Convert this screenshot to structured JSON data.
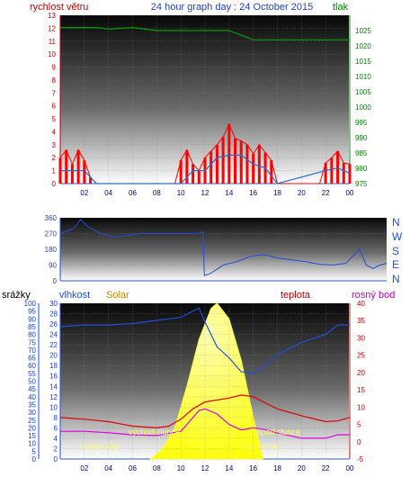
{
  "header": {
    "left_title": "rychlost větru",
    "center_title": "24 hour graph day : 24 October 2015",
    "right_title": "tlak"
  },
  "bottom_headers": {
    "rain": "srážky",
    "humidity": "vlhkost",
    "solar": "Solar",
    "temp": "teplota",
    "dew": "rosný bod"
  },
  "colors": {
    "wind": "#ff0000",
    "wind_avg": "#1e6fd0",
    "pressure": "#00a000",
    "direction": "#1f4fd8",
    "humidity": "#1f4fd8",
    "temperature": "#e00000",
    "dewpoint": "#e000e0",
    "solar": "#ffff30",
    "title_blue": "#2040c0",
    "label_red": "#c00000",
    "axis_green": "#008000",
    "solar_label": "#d08000"
  },
  "chart_data": [
    {
      "type": "bar",
      "title": "24 hour graph day : 24 October 2015",
      "ylabel": "rychlost větru",
      "y2label": "tlak",
      "ylim": [
        0,
        13
      ],
      "y2lim": [
        975,
        1030
      ],
      "x_ticks": [
        "02",
        "04",
        "06",
        "08",
        "10",
        "12",
        "14",
        "16",
        "18",
        "20",
        "22",
        "00"
      ],
      "y_ticks": [
        "0",
        "1",
        "2",
        "3",
        "4",
        "5",
        "6",
        "7",
        "8",
        "9",
        "10",
        "11",
        "12",
        "13"
      ],
      "y2_ticks": [
        "975",
        "980",
        "985",
        "990",
        "995",
        "1000",
        "1005",
        "1010",
        "1015",
        "1020",
        "1025"
      ],
      "series": [
        {
          "x": [
            0,
            0.5,
            1,
            1.5,
            2,
            2.5,
            3,
            9.5,
            10,
            10.5,
            11,
            11.5,
            12,
            12.5,
            13,
            13.5,
            14,
            14.5,
            15,
            15.5,
            16,
            16.5,
            17,
            17.5,
            18,
            21.5,
            22,
            22.5,
            23,
            23.5,
            24
          ],
          "values": [
            2,
            2.6,
            1.5,
            2.6,
            1.8,
            0.5,
            0,
            0,
            1.8,
            2.6,
            1.5,
            1,
            2,
            2.5,
            3,
            3.6,
            4.6,
            3.5,
            3.3,
            3,
            2.3,
            3,
            2.4,
            1.8,
            0,
            0,
            1.6,
            2,
            2.5,
            1.6,
            1.5
          ]
        },
        {
          "x": [
            0,
            1,
            2,
            3,
            10,
            11,
            12,
            13,
            14,
            15,
            16,
            17,
            18,
            22,
            23,
            24
          ],
          "values": [
            1,
            1,
            1,
            0,
            0,
            1,
            1,
            2,
            2.2,
            2.2,
            1.5,
            1.2,
            0,
            1,
            1.2,
            0.8
          ]
        },
        {
          "x": [
            0,
            3,
            4,
            6,
            8,
            10,
            12,
            14,
            16,
            18,
            24
          ],
          "values": [
            1026,
            1026,
            1025.5,
            1026,
            1025,
            1025,
            1025,
            1025,
            1022,
            1022,
            1022
          ]
        }
      ]
    },
    {
      "type": "line",
      "right_labels": [
        "N",
        "W",
        "S",
        "E",
        "N"
      ],
      "ylim": [
        0,
        360
      ],
      "y_ticks": [
        "0",
        "90",
        "180",
        "270",
        "360"
      ],
      "series": [
        {
          "x": [
            0,
            1,
            1.5,
            2,
            2.5,
            3,
            4,
            6,
            8,
            10,
            10.5,
            10.6,
            11,
            12,
            13,
            14,
            15,
            16,
            17,
            18,
            19,
            20,
            21,
            22,
            22.5,
            23,
            23.5,
            24
          ],
          "values": [
            270,
            300,
            350,
            310,
            290,
            270,
            250,
            270,
            270,
            270,
            280,
            30,
            40,
            90,
            110,
            140,
            150,
            130,
            120,
            110,
            95,
            90,
            100,
            180,
            90,
            70,
            90,
            100
          ]
        }
      ]
    },
    {
      "type": "line",
      "x_ticks": [
        "02",
        "04",
        "06",
        "08",
        "10",
        "12",
        "14",
        "16",
        "18",
        "20",
        "22",
        "00"
      ],
      "rain_ticks": [
        "0",
        "5",
        "10",
        "15",
        "20",
        "25",
        "30",
        "35",
        "40",
        "45",
        "50",
        "55",
        "60",
        "65",
        "70",
        "75",
        "80",
        "85",
        "90",
        "95",
        "100"
      ],
      "humidity_ticks": [
        "0",
        "2",
        "4",
        "6",
        "8",
        "10",
        "12",
        "14",
        "16",
        "18",
        "20",
        "22",
        "24",
        "26",
        "28",
        "30"
      ],
      "temp_ticks": [
        "-5",
        "0",
        "5",
        "10",
        "15",
        "20",
        "25",
        "30",
        "35",
        "40"
      ],
      "ylim_humidity": [
        0,
        100
      ],
      "ylim_temp": [
        -5,
        40
      ],
      "annotations": [
        "Moon Set",
        "východ slunce",
        "západ slunce",
        "Moon Rise"
      ],
      "series": [
        {
          "x": [
            0,
            2,
            4,
            6,
            8,
            10,
            11,
            11.5,
            12,
            13,
            14,
            15,
            16,
            17,
            18,
            20,
            22,
            23,
            24
          ],
          "values": [
            85,
            86,
            86,
            87,
            89,
            91,
            95,
            97,
            88,
            72,
            65,
            56,
            55,
            60,
            67,
            75,
            80,
            86,
            86
          ]
        },
        {
          "x": [
            0,
            2,
            4,
            6,
            8,
            9,
            10,
            11,
            12,
            14,
            15,
            16,
            17,
            18,
            20,
            22,
            23,
            24
          ],
          "values": [
            7,
            6.5,
            5.8,
            4.5,
            4,
            4.5,
            6.5,
            9.5,
            11.5,
            12.6,
            13.5,
            13,
            11.2,
            9.5,
            7.5,
            5.8,
            6,
            7
          ]
        },
        {
          "x": [
            0,
            2,
            4,
            6,
            8,
            10,
            10.5,
            11,
            11.5,
            12,
            13,
            14,
            15,
            16,
            17,
            18,
            20,
            22,
            23,
            24
          ],
          "values": [
            3,
            3,
            2.6,
            2,
            1.8,
            3,
            5,
            7,
            9,
            9.5,
            8,
            5,
            3.4,
            4,
            3.5,
            2.5,
            1,
            1,
            2,
            2
          ]
        },
        {
          "x": [
            7.5,
            8.5,
            9.5,
            10.5,
            11.5,
            12.5,
            13,
            14,
            15,
            16,
            16.8
          ],
          "values": [
            0,
            2,
            6,
            14,
            23,
            29,
            30,
            27,
            19,
            8,
            0
          ]
        }
      ]
    }
  ]
}
